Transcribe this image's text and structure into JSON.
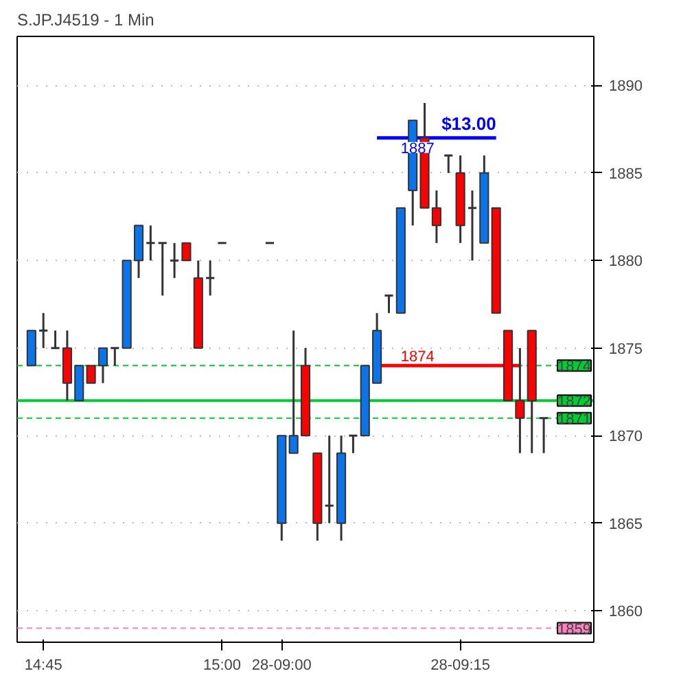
{
  "chart_data": {
    "type": "candlestick",
    "title": "S.JP.J4519 - 1 Min",
    "categories": [
      null,
      "14:45",
      null,
      null,
      null,
      null,
      null,
      null,
      null,
      null,
      null,
      null,
      null,
      null,
      null,
      null,
      "15:00",
      null,
      null,
      null,
      null,
      "28-09:00",
      null,
      null,
      null,
      null,
      null,
      null,
      null,
      null,
      null,
      null,
      null,
      null,
      null,
      null,
      "28-09:15",
      null,
      null,
      null,
      null,
      null,
      null,
      null
    ],
    "ohlc": [
      [
        1874,
        1876,
        1874,
        1876
      ],
      [
        1876,
        1877,
        1875,
        1876
      ],
      [
        1875,
        1876,
        1875,
        1875
      ],
      [
        1875,
        1876,
        1872,
        1873
      ],
      [
        1872,
        1874,
        1872,
        1874
      ],
      [
        1874,
        1874,
        1873,
        1873
      ],
      [
        1874,
        1875,
        1873,
        1875
      ],
      [
        1875,
        1875,
        1874,
        1875
      ],
      [
        1875,
        1880,
        1875,
        1880
      ],
      [
        1880,
        1882,
        1879,
        1882
      ],
      [
        1881,
        1882,
        1880,
        1881
      ],
      [
        1881,
        1881,
        1878,
        1881
      ],
      [
        1880,
        1881,
        1879,
        1880
      ],
      [
        1881,
        1881,
        1880,
        1880
      ],
      [
        1879,
        1880,
        1875,
        1875
      ],
      [
        1879,
        1880,
        1878,
        1879
      ],
      [
        1881,
        1881,
        1881,
        1881
      ],
      null,
      null,
      null,
      [
        1881,
        1881,
        1881,
        1881
      ],
      [
        1865,
        1870,
        1864,
        1870
      ],
      [
        1869,
        1876,
        1869,
        1870
      ],
      [
        1874,
        1875,
        1870,
        1870
      ],
      [
        1869,
        1869,
        1864,
        1865
      ],
      [
        1866,
        1870,
        1865,
        1866
      ],
      [
        1865,
        1870,
        1864,
        1869
      ],
      [
        1870,
        1870,
        1869,
        1870
      ],
      [
        1870,
        1874,
        1870,
        1874
      ],
      [
        1873,
        1877,
        1873,
        1876
      ],
      [
        1878,
        1878,
        1877,
        1878
      ],
      [
        1877,
        1883,
        1877,
        1883
      ],
      [
        1884,
        1888,
        1882,
        1888
      ],
      [
        1887,
        1889,
        1883,
        1883
      ],
      [
        1883,
        1884,
        1881,
        1882
      ],
      [
        1886,
        1886,
        1885,
        1886
      ],
      [
        1885,
        1886,
        1881,
        1882
      ],
      [
        1883,
        1884,
        1880,
        1883
      ],
      [
        1881,
        1886,
        1881,
        1885
      ],
      [
        1883,
        1883,
        1877,
        1877
      ],
      [
        1876,
        1876,
        1872,
        1872
      ],
      [
        1872,
        1875,
        1869,
        1871
      ],
      [
        1876,
        1876,
        1869,
        1872
      ],
      [
        1871,
        1871,
        1869,
        1871
      ]
    ],
    "colors": [
      "#0a74e8",
      "#333333",
      "#333333",
      "#ff0000",
      "#0a74e8",
      "#ff0000",
      "#0a74e8",
      "#333333",
      "#0a74e8",
      "#0a74e8",
      "#333333",
      "#333333",
      "#333333",
      "#ff0000",
      "#ff0000",
      "#333333",
      "#333333",
      null,
      null,
      null,
      "#333333",
      "#0a74e8",
      "#0a74e8",
      "#ff0000",
      "#ff0000",
      "#333333",
      "#0a74e8",
      "#333333",
      "#0a74e8",
      "#0a74e8",
      "#333333",
      "#0a74e8",
      "#0a74e8",
      "#ff0000",
      "#ff0000",
      "#333333",
      "#ff0000",
      "#333333",
      "#0a74e8",
      "#ff0000",
      "#ff0000",
      "#ff0000",
      "#ff0000",
      "#333333"
    ],
    "series": [
      {
        "type": "line",
        "name": "$13.00",
        "color": "#0000ff",
        "values": [
          null,
          null,
          null,
          null,
          null,
          null,
          null,
          null,
          null,
          null,
          null,
          null,
          null,
          null,
          null,
          null,
          null,
          null,
          null,
          null,
          null,
          null,
          null,
          null,
          null,
          null,
          null,
          null,
          null,
          1887,
          1887,
          1887,
          1887,
          1887,
          1887,
          1887,
          1887,
          1887,
          1887,
          1887,
          null,
          null,
          null,
          null
        ]
      },
      {
        "type": "line",
        "color": "#ff0000",
        "values": [
          null,
          null,
          null,
          null,
          null,
          null,
          null,
          null,
          null,
          null,
          null,
          null,
          null,
          null,
          null,
          null,
          null,
          null,
          null,
          null,
          null,
          null,
          null,
          null,
          null,
          null,
          null,
          null,
          null,
          1874,
          1874,
          1874,
          1874,
          1874,
          1874,
          1874,
          1874,
          1874,
          1874,
          1874,
          1874,
          1874,
          null,
          null
        ]
      }
    ],
    "annotations": [
      {
        "text": "1887",
        "y": 1887
      },
      {
        "text": "1874",
        "y": 1874
      }
    ],
    "ref_lines": [
      {
        "axis": "y",
        "value": 1874,
        "label": "1874",
        "color": "#00cc33",
        "line_style": "dashed"
      },
      {
        "axis": "y",
        "value": 1872,
        "label": "1872",
        "color": "#00cc33",
        "line_style": "solid"
      },
      {
        "axis": "y",
        "value": 1871,
        "label": "1871",
        "color": "#00cc33",
        "line_style": "dashed"
      },
      {
        "axis": "y",
        "value": 1859,
        "label": "1859",
        "color": "#ff80c0",
        "line_style": "dashed"
      }
    ],
    "ylim": [
      1858.2,
      1892.8
    ],
    "yticks": [
      1860,
      1865,
      1870,
      1875,
      1880,
      1885,
      1890
    ],
    "grid": "y"
  }
}
